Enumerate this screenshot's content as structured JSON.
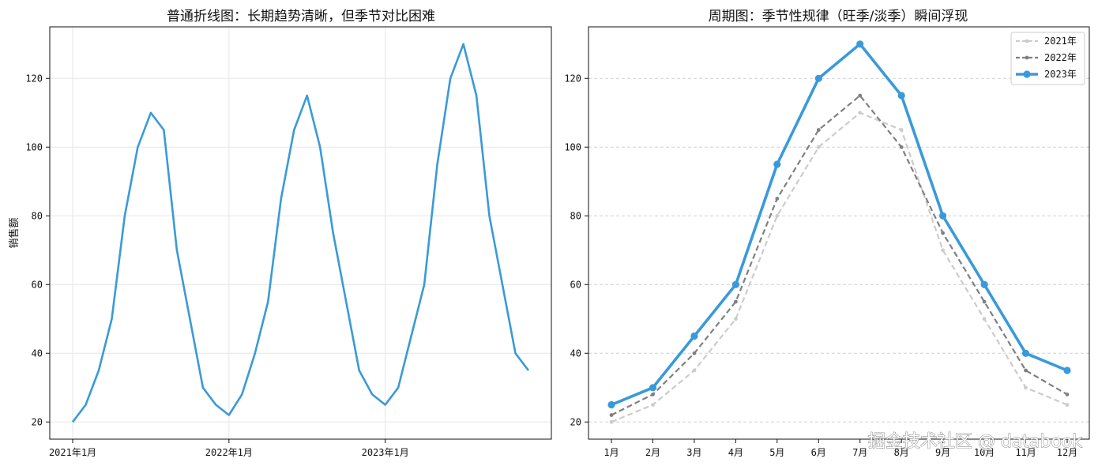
{
  "watermark": "掘金技术社区 @ databook",
  "chart_data": [
    {
      "type": "line",
      "title": "普通折线图：长期趋势清晰，但季节对比困难",
      "xlabel": "",
      "ylabel": "销售额",
      "ylim": [
        15,
        135
      ],
      "yticks": [
        20,
        40,
        60,
        80,
        100,
        120
      ],
      "xtick_labels": [
        "2021年1月",
        "2022年1月",
        "2023年1月"
      ],
      "grid": true,
      "color": "#3a9ad9",
      "series": [
        {
          "values": [
            20,
            25,
            35,
            50,
            80,
            100,
            110,
            105,
            70,
            50,
            30,
            25,
            22,
            28,
            40,
            55,
            85,
            105,
            115,
            100,
            75,
            55,
            35,
            28,
            25,
            30,
            45,
            60,
            95,
            120,
            130,
            115,
            80,
            60,
            40,
            35
          ]
        }
      ]
    },
    {
      "type": "line",
      "title": "周期图：季节性规律（旺季/淡季）瞬间浮现",
      "xlabel": "",
      "ylabel": "",
      "ylim": [
        15,
        135
      ],
      "yticks": [
        20,
        40,
        60,
        80,
        100,
        120
      ],
      "categories": [
        "1月",
        "2月",
        "3月",
        "4月",
        "5月",
        "6月",
        "7月",
        "8月",
        "9月",
        "10月",
        "11月",
        "12月"
      ],
      "grid": "y-dashed",
      "legend": "top-right",
      "series": [
        {
          "name": "2021年",
          "color": "#cccccc",
          "values": [
            20,
            25,
            35,
            50,
            80,
            100,
            110,
            105,
            70,
            50,
            30,
            25
          ]
        },
        {
          "name": "2022年",
          "color": "#808080",
          "values": [
            22,
            28,
            40,
            55,
            85,
            105,
            115,
            100,
            75,
            55,
            35,
            28
          ]
        },
        {
          "name": "2023年",
          "color": "#3a9ad9",
          "values": [
            25,
            30,
            45,
            60,
            95,
            120,
            130,
            115,
            80,
            60,
            40,
            35
          ]
        }
      ]
    }
  ]
}
